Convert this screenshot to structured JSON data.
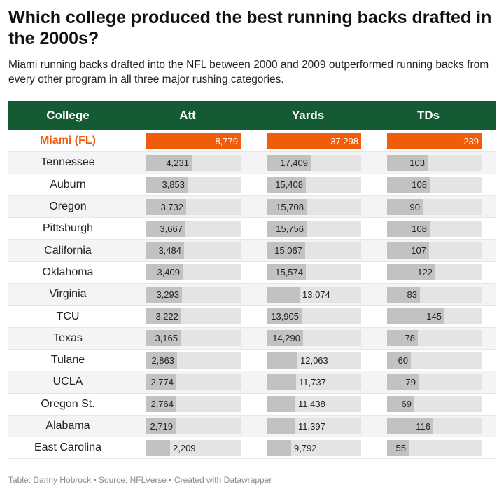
{
  "title": "Which college produced the best running backs drafted in the 2000s?",
  "subtitle": "Miami running backs drafted into the NFL between 2000 and 2009 outperformed running backs from every other program in all three major rushing categories.",
  "footer": "Table: Danny Hobrock • Source: NFLVerse • Created with Datawrapper",
  "colors": {
    "header_bg": "#145a32",
    "highlight": "#ef5d0b",
    "bar": "#c2c2c2",
    "track": "#e4e4e4"
  },
  "chart_data": {
    "type": "table",
    "columns": [
      "College",
      "Att",
      "Yards",
      "TDs"
    ],
    "highlight_row": "Miami (FL)",
    "rows": [
      {
        "college": "Miami (FL)",
        "att": 8779,
        "yards": 37298,
        "tds": 239,
        "att_label": "8,779",
        "yards_label": "37,298",
        "tds_label": "239"
      },
      {
        "college": "Tennessee",
        "att": 4231,
        "yards": 17409,
        "tds": 103,
        "att_label": "4,231",
        "yards_label": "17,409",
        "tds_label": "103"
      },
      {
        "college": "Auburn",
        "att": 3853,
        "yards": 15408,
        "tds": 108,
        "att_label": "3,853",
        "yards_label": "15,408",
        "tds_label": "108"
      },
      {
        "college": "Oregon",
        "att": 3732,
        "yards": 15708,
        "tds": 90,
        "att_label": "3,732",
        "yards_label": "15,708",
        "tds_label": "90"
      },
      {
        "college": "Pittsburgh",
        "att": 3667,
        "yards": 15756,
        "tds": 108,
        "att_label": "3,667",
        "yards_label": "15,756",
        "tds_label": "108"
      },
      {
        "college": "California",
        "att": 3484,
        "yards": 15067,
        "tds": 107,
        "att_label": "3,484",
        "yards_label": "15,067",
        "tds_label": "107"
      },
      {
        "college": "Oklahoma",
        "att": 3409,
        "yards": 15574,
        "tds": 122,
        "att_label": "3,409",
        "yards_label": "15,574",
        "tds_label": "122"
      },
      {
        "college": "Virginia",
        "att": 3293,
        "yards": 13074,
        "tds": 83,
        "att_label": "3,293",
        "yards_label": "13,074",
        "tds_label": "83"
      },
      {
        "college": "TCU",
        "att": 3222,
        "yards": 13905,
        "tds": 145,
        "att_label": "3,222",
        "yards_label": "13,905",
        "tds_label": "145"
      },
      {
        "college": "Texas",
        "att": 3165,
        "yards": 14290,
        "tds": 78,
        "att_label": "3,165",
        "yards_label": "14,290",
        "tds_label": "78"
      },
      {
        "college": "Tulane",
        "att": 2863,
        "yards": 12063,
        "tds": 60,
        "att_label": "2,863",
        "yards_label": "12,063",
        "tds_label": "60"
      },
      {
        "college": "UCLA",
        "att": 2774,
        "yards": 11737,
        "tds": 79,
        "att_label": "2,774",
        "yards_label": "11,737",
        "tds_label": "79"
      },
      {
        "college": "Oregon St.",
        "att": 2764,
        "yards": 11438,
        "tds": 69,
        "att_label": "2,764",
        "yards_label": "11,438",
        "tds_label": "69"
      },
      {
        "college": "Alabama",
        "att": 2719,
        "yards": 11397,
        "tds": 116,
        "att_label": "2,719",
        "yards_label": "11,397",
        "tds_label": "116"
      },
      {
        "college": "East Carolina",
        "att": 2209,
        "yards": 9792,
        "tds": 55,
        "att_label": "2,209",
        "yards_label": "9,792",
        "tds_label": "55"
      }
    ]
  }
}
